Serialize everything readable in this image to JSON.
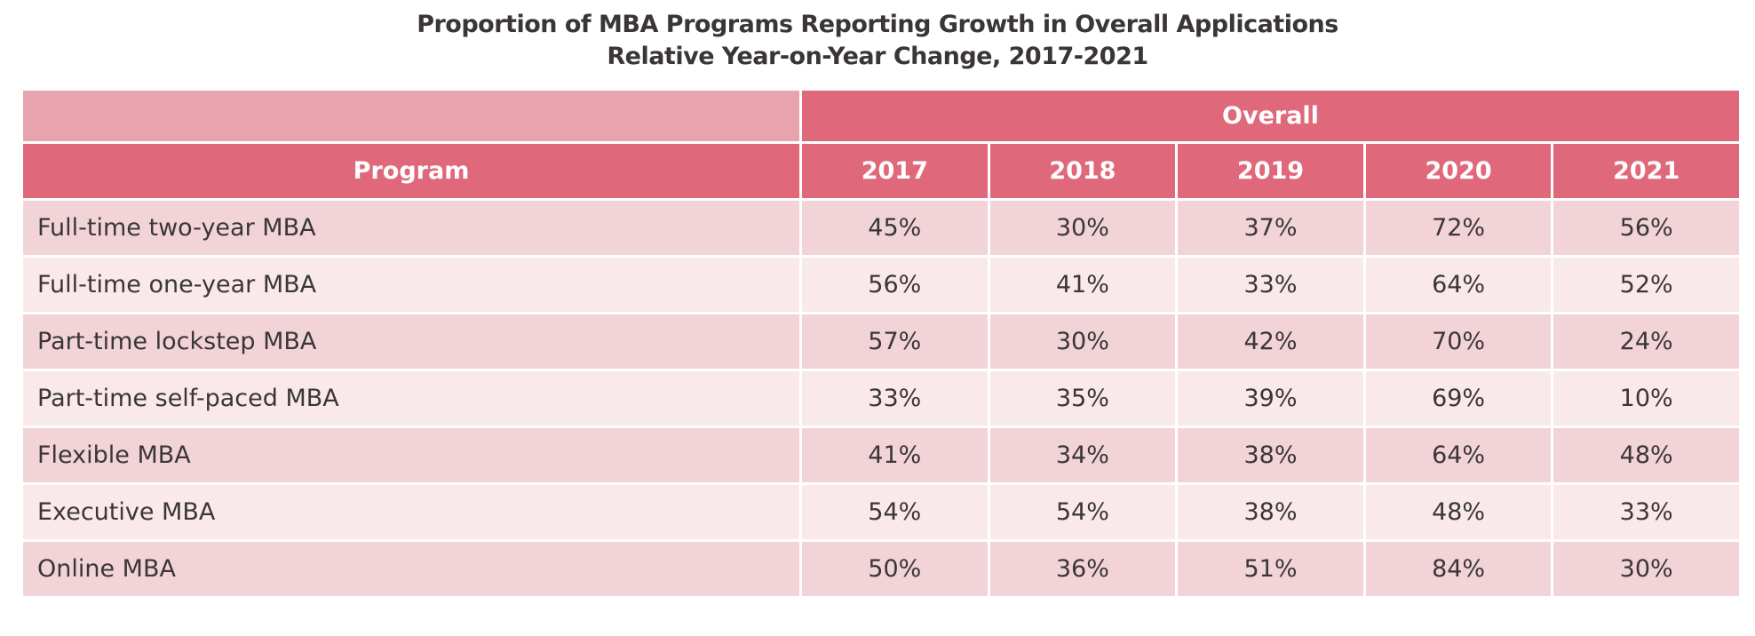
{
  "chart_data": {
    "type": "table",
    "title": "Proportion of MBA Programs Reporting Growth in Overall Applications",
    "subtitle": "Relative Year-on-Year Change, 2017-2021",
    "group_header": "Overall",
    "row_header": "Program",
    "columns": [
      "2017",
      "2018",
      "2019",
      "2020",
      "2021"
    ],
    "rows": [
      {
        "program": "Full-time two-year MBA",
        "values": [
          "45%",
          "30%",
          "37%",
          "72%",
          "56%"
        ]
      },
      {
        "program": "Full-time one-year MBA",
        "values": [
          "56%",
          "41%",
          "33%",
          "64%",
          "52%"
        ]
      },
      {
        "program": "Part-time lockstep MBA",
        "values": [
          "57%",
          "30%",
          "42%",
          "70%",
          "24%"
        ]
      },
      {
        "program": "Part-time self-paced MBA",
        "values": [
          "33%",
          "35%",
          "39%",
          "69%",
          "10%"
        ]
      },
      {
        "program": "Flexible MBA",
        "values": [
          "41%",
          "34%",
          "38%",
          "64%",
          "48%"
        ]
      },
      {
        "program": "Executive MBA",
        "values": [
          "54%",
          "54%",
          "38%",
          "48%",
          "33%"
        ]
      },
      {
        "program": "Online MBA",
        "values": [
          "50%",
          "36%",
          "51%",
          "84%",
          "30%"
        ]
      }
    ],
    "colors": {
      "header": "#e0687b",
      "header_blank": "#e8a4ae",
      "row_odd": "#f2d4d8",
      "row_even": "#f9e9eb"
    }
  }
}
